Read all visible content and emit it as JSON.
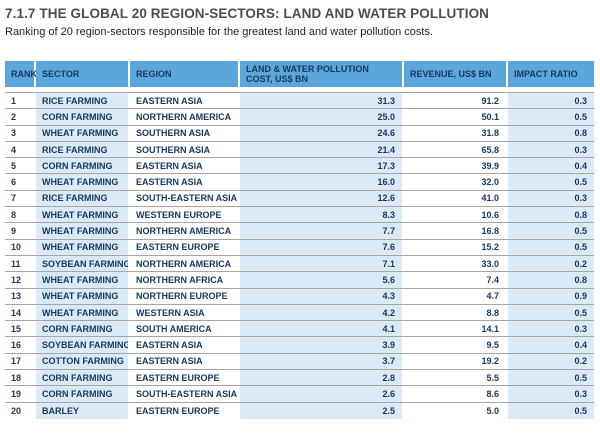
{
  "page": {
    "title": "7.1.7 THE GLOBAL 20 REGION-SECTORS: LAND AND WATER POLLUTION",
    "subtitle": "Ranking of 20 region-sectors responsible for the greatest land and water pollution costs."
  },
  "table": {
    "columns": [
      {
        "label": "RANK"
      },
      {
        "label": "SECTOR"
      },
      {
        "label": "REGION"
      },
      {
        "label": "LAND & WATER POLLUTION COST, US$ BN"
      },
      {
        "label": "REVENUE, US$ BN"
      },
      {
        "label": "IMPACT RATIO"
      }
    ],
    "rows": [
      {
        "rank": "1",
        "sector": "RICE FARMING",
        "region": "EASTERN ASIA",
        "cost": "31.3",
        "revenue": "91.2",
        "ratio": "0.3"
      },
      {
        "rank": "2",
        "sector": "CORN FARMING",
        "region": "NORTHERN AMERICA",
        "cost": "25.0",
        "revenue": "50.1",
        "ratio": "0.5"
      },
      {
        "rank": "3",
        "sector": "WHEAT FARMING",
        "region": "SOUTHERN ASIA",
        "cost": "24.6",
        "revenue": "31.8",
        "ratio": "0.8"
      },
      {
        "rank": "4",
        "sector": "RICE FARMING",
        "region": "SOUTHERN ASIA",
        "cost": "21.4",
        "revenue": "65.8",
        "ratio": "0.3"
      },
      {
        "rank": "5",
        "sector": "CORN FARMING",
        "region": "EASTERN ASIA",
        "cost": "17.3",
        "revenue": "39.9",
        "ratio": "0.4"
      },
      {
        "rank": "6",
        "sector": "WHEAT FARMING",
        "region": "EASTERN ASIA",
        "cost": "16.0",
        "revenue": "32.0",
        "ratio": "0.5"
      },
      {
        "rank": "7",
        "sector": "RICE FARMING",
        "region": "SOUTH-EASTERN ASIA",
        "cost": "12.6",
        "revenue": "41.0",
        "ratio": "0.3"
      },
      {
        "rank": "8",
        "sector": "WHEAT FARMING",
        "region": "WESTERN EUROPE",
        "cost": "8.3",
        "revenue": "10.6",
        "ratio": "0.8"
      },
      {
        "rank": "9",
        "sector": "WHEAT FARMING",
        "region": "NORTHERN AMERICA",
        "cost": "7.7",
        "revenue": "16.8",
        "ratio": "0.5"
      },
      {
        "rank": "10",
        "sector": "WHEAT FARMING",
        "region": "EASTERN EUROPE",
        "cost": "7.6",
        "revenue": "15.2",
        "ratio": "0.5"
      },
      {
        "rank": "11",
        "sector": "SOYBEAN FARMING",
        "region": "NORTHERN AMERICA",
        "cost": "7.1",
        "revenue": "33.0",
        "ratio": "0.2"
      },
      {
        "rank": "12",
        "sector": "WHEAT FARMING",
        "region": "NORTHERN AFRICA",
        "cost": "5.6",
        "revenue": "7.4",
        "ratio": "0.8"
      },
      {
        "rank": "13",
        "sector": "WHEAT FARMING",
        "region": "NORTHERN EUROPE",
        "cost": "4.3",
        "revenue": "4.7",
        "ratio": "0.9"
      },
      {
        "rank": "14",
        "sector": "WHEAT FARMING",
        "region": "WESTERN ASIA",
        "cost": "4.2",
        "revenue": "8.8",
        "ratio": "0.5"
      },
      {
        "rank": "15",
        "sector": "CORN FARMING",
        "region": "SOUTH AMERICA",
        "cost": "4.1",
        "revenue": "14.1",
        "ratio": "0.3"
      },
      {
        "rank": "16",
        "sector": "SOYBEAN FARMING",
        "region": "EASTERN ASIA",
        "cost": "3.9",
        "revenue": "9.5",
        "ratio": "0.4"
      },
      {
        "rank": "17",
        "sector": "COTTON FARMING",
        "region": "EASTERN ASIA",
        "cost": "3.7",
        "revenue": "19.2",
        "ratio": "0.2"
      },
      {
        "rank": "18",
        "sector": "CORN FARMING",
        "region": "EASTERN EUROPE",
        "cost": "2.8",
        "revenue": "5.5",
        "ratio": "0.5"
      },
      {
        "rank": "19",
        "sector": "CORN FARMING",
        "region": "SOUTH-EASTERN ASIA",
        "cost": "2.6",
        "revenue": "8.6",
        "ratio": "0.3"
      },
      {
        "rank": "20",
        "sector": "BARLEY",
        "region": "EASTERN EUROPE",
        "cost": "2.5",
        "revenue": "5.0",
        "ratio": "0.5"
      }
    ]
  },
  "colors": {
    "header_bg": "#5BA7DB",
    "tint_bg": "#DAEAF6",
    "grid_line": "#A6A6A6",
    "header_text": "#17375E",
    "body_text": "#17375E",
    "title_text": "#4D4D4D"
  }
}
